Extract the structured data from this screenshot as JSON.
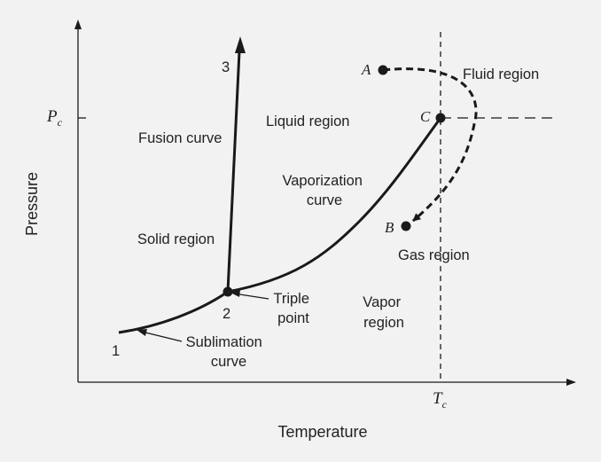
{
  "axes": {
    "x_title": "Temperature",
    "y_title": "Pressure",
    "x_critical": {
      "main": "T",
      "sub": "c"
    },
    "y_critical": {
      "main": "P",
      "sub": "c"
    }
  },
  "points": {
    "A": "A",
    "B": "B",
    "C": "C",
    "n1": "1",
    "n2": "2",
    "n3": "3"
  },
  "regions": {
    "fluid": "Fluid region",
    "liquid": "Liquid region",
    "solid": "Solid region",
    "gas": "Gas region",
    "vapor": [
      "Vapor",
      "region"
    ]
  },
  "curves": {
    "fusion": "Fusion curve",
    "vaporization": [
      "Vaporization",
      "curve"
    ],
    "sublimation": [
      "Sublimation",
      "curve"
    ],
    "triple": [
      "Triple",
      "point"
    ]
  }
}
